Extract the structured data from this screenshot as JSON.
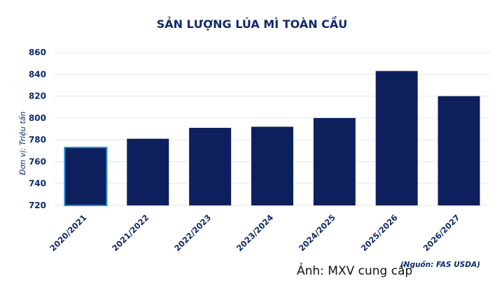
{
  "chart_data": {
    "type": "bar",
    "title": "SẢN LƯỢNG LÚA MÌ TOÀN CẦU",
    "ylabel": "Đơn vị: Triệu tấn",
    "xlabel": "",
    "categories": [
      "2020/2021",
      "2021/2022",
      "2022/2023",
      "2023/2024",
      "2024/2025",
      "2025/2026",
      "2026/2027"
    ],
    "values": [
      773,
      781,
      791,
      792,
      800,
      843,
      820
    ],
    "ylim": [
      720,
      860
    ],
    "yticks": [
      720,
      740,
      760,
      780,
      800,
      820,
      840,
      860
    ],
    "grid": true,
    "bar_color": "#0d1f5c",
    "highlight_border_color": "#1a8fd6",
    "highlight_index": 0,
    "source": "(Nguồn: FAS USDA)"
  },
  "caption": "Ảnh: MXV cung cấp"
}
